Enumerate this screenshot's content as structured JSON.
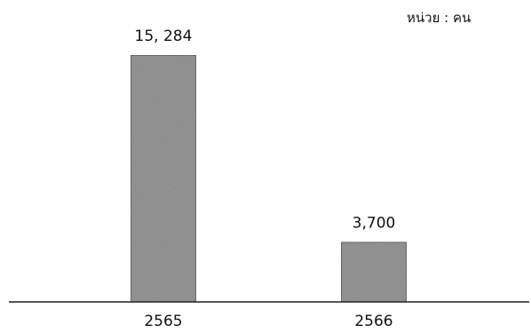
{
  "chart_data": {
    "type": "bar",
    "unit_label": "หน่วย : คน",
    "categories": [
      "2565",
      "2566"
    ],
    "values": [
      15284,
      3700
    ],
    "data_labels": [
      "15, 284",
      "3,700"
    ],
    "ylim": [
      0,
      15284
    ],
    "grid": false,
    "legend": "none",
    "bar_color": "#9a9a9a",
    "axis_color": "#222222",
    "text_color": "#111111"
  }
}
